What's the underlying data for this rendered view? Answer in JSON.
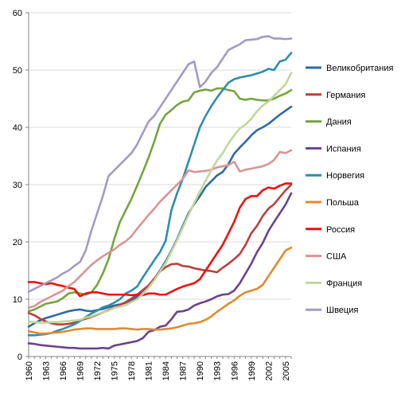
{
  "chart_data": {
    "type": "line",
    "title": "",
    "xlabel": "",
    "ylabel": "",
    "xlim": [
      1960,
      2006
    ],
    "ylim": [
      0,
      60
    ],
    "y_ticks": [
      0,
      10,
      20,
      30,
      40,
      50,
      60
    ],
    "x_ticks": [
      1960,
      1963,
      1966,
      1969,
      1972,
      1975,
      1978,
      1981,
      1984,
      1987,
      1990,
      1993,
      1996,
      1999,
      2002,
      2005
    ],
    "x_tick_labels": [
      "1960",
      "1963",
      "1966",
      "1969",
      "1972",
      "1975",
      "1978",
      "1981",
      "1984",
      "1987",
      "1990",
      "1993",
      "1996",
      "1999",
      "2002",
      "2005"
    ],
    "grid": {
      "horizontal": true,
      "vertical": false
    },
    "legend_position": "right",
    "x": [
      1960,
      1961,
      1962,
      1963,
      1964,
      1965,
      1966,
      1967,
      1968,
      1969,
      1970,
      1971,
      1972,
      1973,
      1974,
      1975,
      1976,
      1977,
      1978,
      1979,
      1980,
      1981,
      1982,
      1983,
      1984,
      1985,
      1986,
      1987,
      1988,
      1989,
      1990,
      1991,
      1992,
      1993,
      1994,
      1995,
      1996,
      1997,
      1998,
      1999,
      2000,
      2001,
      2002,
      2003,
      2004,
      2005,
      2006
    ],
    "series": [
      {
        "name": "Великобритания",
        "color": "#2e6aa6",
        "values": [
          5.2,
          5.8,
          6.3,
          6.7,
          7.0,
          7.3,
          7.6,
          7.9,
          8.1,
          8.2,
          8.0,
          7.9,
          8.1,
          8.3,
          8.6,
          8.9,
          9.1,
          9.4,
          9.7,
          10.4,
          11.5,
          12.4,
          13.5,
          15.0,
          16.6,
          18.5,
          20.5,
          22.8,
          25.0,
          26.6,
          28.0,
          29.6,
          30.6,
          31.6,
          32.2,
          33.6,
          35.4,
          36.5,
          37.5,
          38.6,
          39.5,
          40.0,
          40.6,
          41.4,
          42.2,
          42.9,
          43.6
        ]
      },
      {
        "name": "Германия",
        "color": "#b8413e",
        "values": [
          7.6,
          7.2,
          6.6,
          6.1,
          5.8,
          5.6,
          5.6,
          5.7,
          5.9,
          6.3,
          6.6,
          6.9,
          7.3,
          7.7,
          8.1,
          8.6,
          9.0,
          9.5,
          10.1,
          10.8,
          11.6,
          12.4,
          13.6,
          14.8,
          15.6,
          16.1,
          16.2,
          15.8,
          15.7,
          15.4,
          15.2,
          15.0,
          14.9,
          14.7,
          15.5,
          16.2,
          17.0,
          17.9,
          19.5,
          21.5,
          22.8,
          24.5,
          25.8,
          26.6,
          27.8,
          29.0,
          30.0
        ]
      },
      {
        "name": "Дания",
        "color": "#77a43f",
        "values": [
          7.9,
          8.2,
          8.7,
          9.2,
          9.4,
          9.6,
          10.2,
          11.0,
          11.2,
          11.0,
          10.8,
          11.2,
          12.5,
          14.5,
          17.0,
          20.5,
          23.5,
          25.5,
          27.5,
          29.8,
          32.2,
          34.7,
          37.5,
          40.6,
          42.2,
          43.0,
          43.9,
          44.5,
          44.7,
          46.1,
          46.4,
          46.6,
          46.4,
          46.8,
          46.8,
          46.5,
          46.3,
          45.0,
          44.8,
          45.0,
          44.8,
          44.7,
          44.7,
          45.0,
          45.5,
          45.9,
          46.5
        ]
      },
      {
        "name": "Испания",
        "color": "#6b4487",
        "values": [
          2.3,
          2.2,
          2.0,
          1.9,
          1.8,
          1.7,
          1.6,
          1.5,
          1.5,
          1.4,
          1.4,
          1.4,
          1.4,
          1.5,
          1.4,
          1.9,
          2.1,
          2.3,
          2.5,
          2.7,
          3.2,
          4.3,
          4.6,
          5.2,
          5.4,
          6.5,
          7.8,
          7.9,
          8.2,
          8.9,
          9.3,
          9.6,
          10.0,
          10.5,
          10.8,
          10.9,
          11.5,
          12.8,
          14.5,
          16.2,
          18.2,
          19.8,
          21.9,
          23.5,
          25.0,
          26.5,
          28.5
        ]
      },
      {
        "name": "Норвегия",
        "color": "#2f8ea8",
        "values": [
          3.7,
          3.7,
          3.8,
          3.9,
          4.1,
          4.5,
          4.8,
          5.2,
          5.6,
          6.2,
          6.9,
          7.5,
          8.0,
          8.6,
          8.9,
          9.4,
          10.0,
          11.0,
          11.5,
          12.2,
          13.8,
          15.3,
          16.8,
          18.2,
          20.2,
          25.5,
          28.5,
          31.0,
          34.0,
          37.0,
          40.0,
          42.0,
          43.7,
          45.2,
          46.5,
          47.8,
          48.4,
          48.7,
          48.9,
          49.1,
          49.4,
          49.7,
          50.2,
          50.0,
          51.5,
          51.8,
          53.0
        ]
      },
      {
        "name": "Польша",
        "color": "#e08b30",
        "values": [
          4.4,
          4.2,
          4.0,
          4.0,
          4.1,
          4.2,
          4.3,
          4.5,
          4.7,
          4.8,
          4.9,
          4.9,
          4.8,
          4.8,
          4.8,
          4.8,
          4.9,
          4.9,
          4.8,
          4.7,
          4.8,
          4.8,
          4.7,
          4.7,
          4.8,
          4.9,
          5.1,
          5.4,
          5.7,
          5.8,
          6.0,
          6.4,
          7.0,
          7.8,
          8.5,
          9.2,
          9.8,
          10.6,
          11.2,
          11.5,
          11.8,
          12.5,
          14.0,
          15.5,
          17.0,
          18.5,
          19.0
        ]
      },
      {
        "name": "Россия",
        "color": "#ee1111",
        "values": [
          13.0,
          13.0,
          12.8,
          12.6,
          12.8,
          12.5,
          12.3,
          12.0,
          11.8,
          10.5,
          11.0,
          11.2,
          11.2,
          11.0,
          10.8,
          10.8,
          10.8,
          10.8,
          10.7,
          10.8,
          10.7,
          11.0,
          11.0,
          10.8,
          10.8,
          11.3,
          11.8,
          12.2,
          12.5,
          12.8,
          13.5,
          15.0,
          16.5,
          18.0,
          19.5,
          21.5,
          23.5,
          26.0,
          27.5,
          28.0,
          28.0,
          29.0,
          29.5,
          29.3,
          29.8,
          30.2,
          30.2
        ]
      },
      {
        "name": "США",
        "color": "#d99594",
        "values": [
          8.5,
          8.8,
          9.5,
          10.0,
          10.5,
          11.0,
          11.5,
          12.3,
          13.0,
          14.0,
          15.0,
          16.0,
          16.8,
          17.5,
          18.1,
          18.7,
          19.5,
          20.1,
          21.0,
          22.3,
          23.5,
          24.7,
          25.8,
          27.0,
          28.0,
          29.0,
          30.0,
          31.0,
          32.5,
          32.2,
          32.3,
          32.4,
          32.6,
          33.0,
          33.2,
          33.4,
          34.0,
          32.3,
          32.6,
          32.8,
          33.0,
          33.2,
          33.6,
          34.3,
          35.7,
          35.5,
          36.0
        ]
      },
      {
        "name": "Франция",
        "color": "#c2d69b",
        "values": [
          6.1,
          6.0,
          5.9,
          5.9,
          6.0,
          6.0,
          6.1,
          6.2,
          6.3,
          6.4,
          6.8,
          7.0,
          7.4,
          7.7,
          8.0,
          8.5,
          8.7,
          9.0,
          9.5,
          10.0,
          10.9,
          12.0,
          13.3,
          14.8,
          16.3,
          18.3,
          20.3,
          22.5,
          24.7,
          26.8,
          28.8,
          30.7,
          32.5,
          34.2,
          35.5,
          37.2,
          38.6,
          39.8,
          40.5,
          41.5,
          42.8,
          43.8,
          44.5,
          45.5,
          46.5,
          47.5,
          49.5
        ]
      },
      {
        "name": "Швеция",
        "color": "#a49ac4",
        "values": [
          11.3,
          11.8,
          12.3,
          12.8,
          13.3,
          13.8,
          14.5,
          15.0,
          15.8,
          16.5,
          18.5,
          22.0,
          25.0,
          28.0,
          31.5,
          32.5,
          33.5,
          34.5,
          35.5,
          37.0,
          39.0,
          41.0,
          42.0,
          43.5,
          45.0,
          46.5,
          48.0,
          49.5,
          51.0,
          51.5,
          47.0,
          48.0,
          49.5,
          50.5,
          52.0,
          53.5,
          54.0,
          54.5,
          55.2,
          55.3,
          55.4,
          55.8,
          55.9,
          55.5,
          55.5,
          55.4,
          55.5
        ]
      }
    ]
  }
}
